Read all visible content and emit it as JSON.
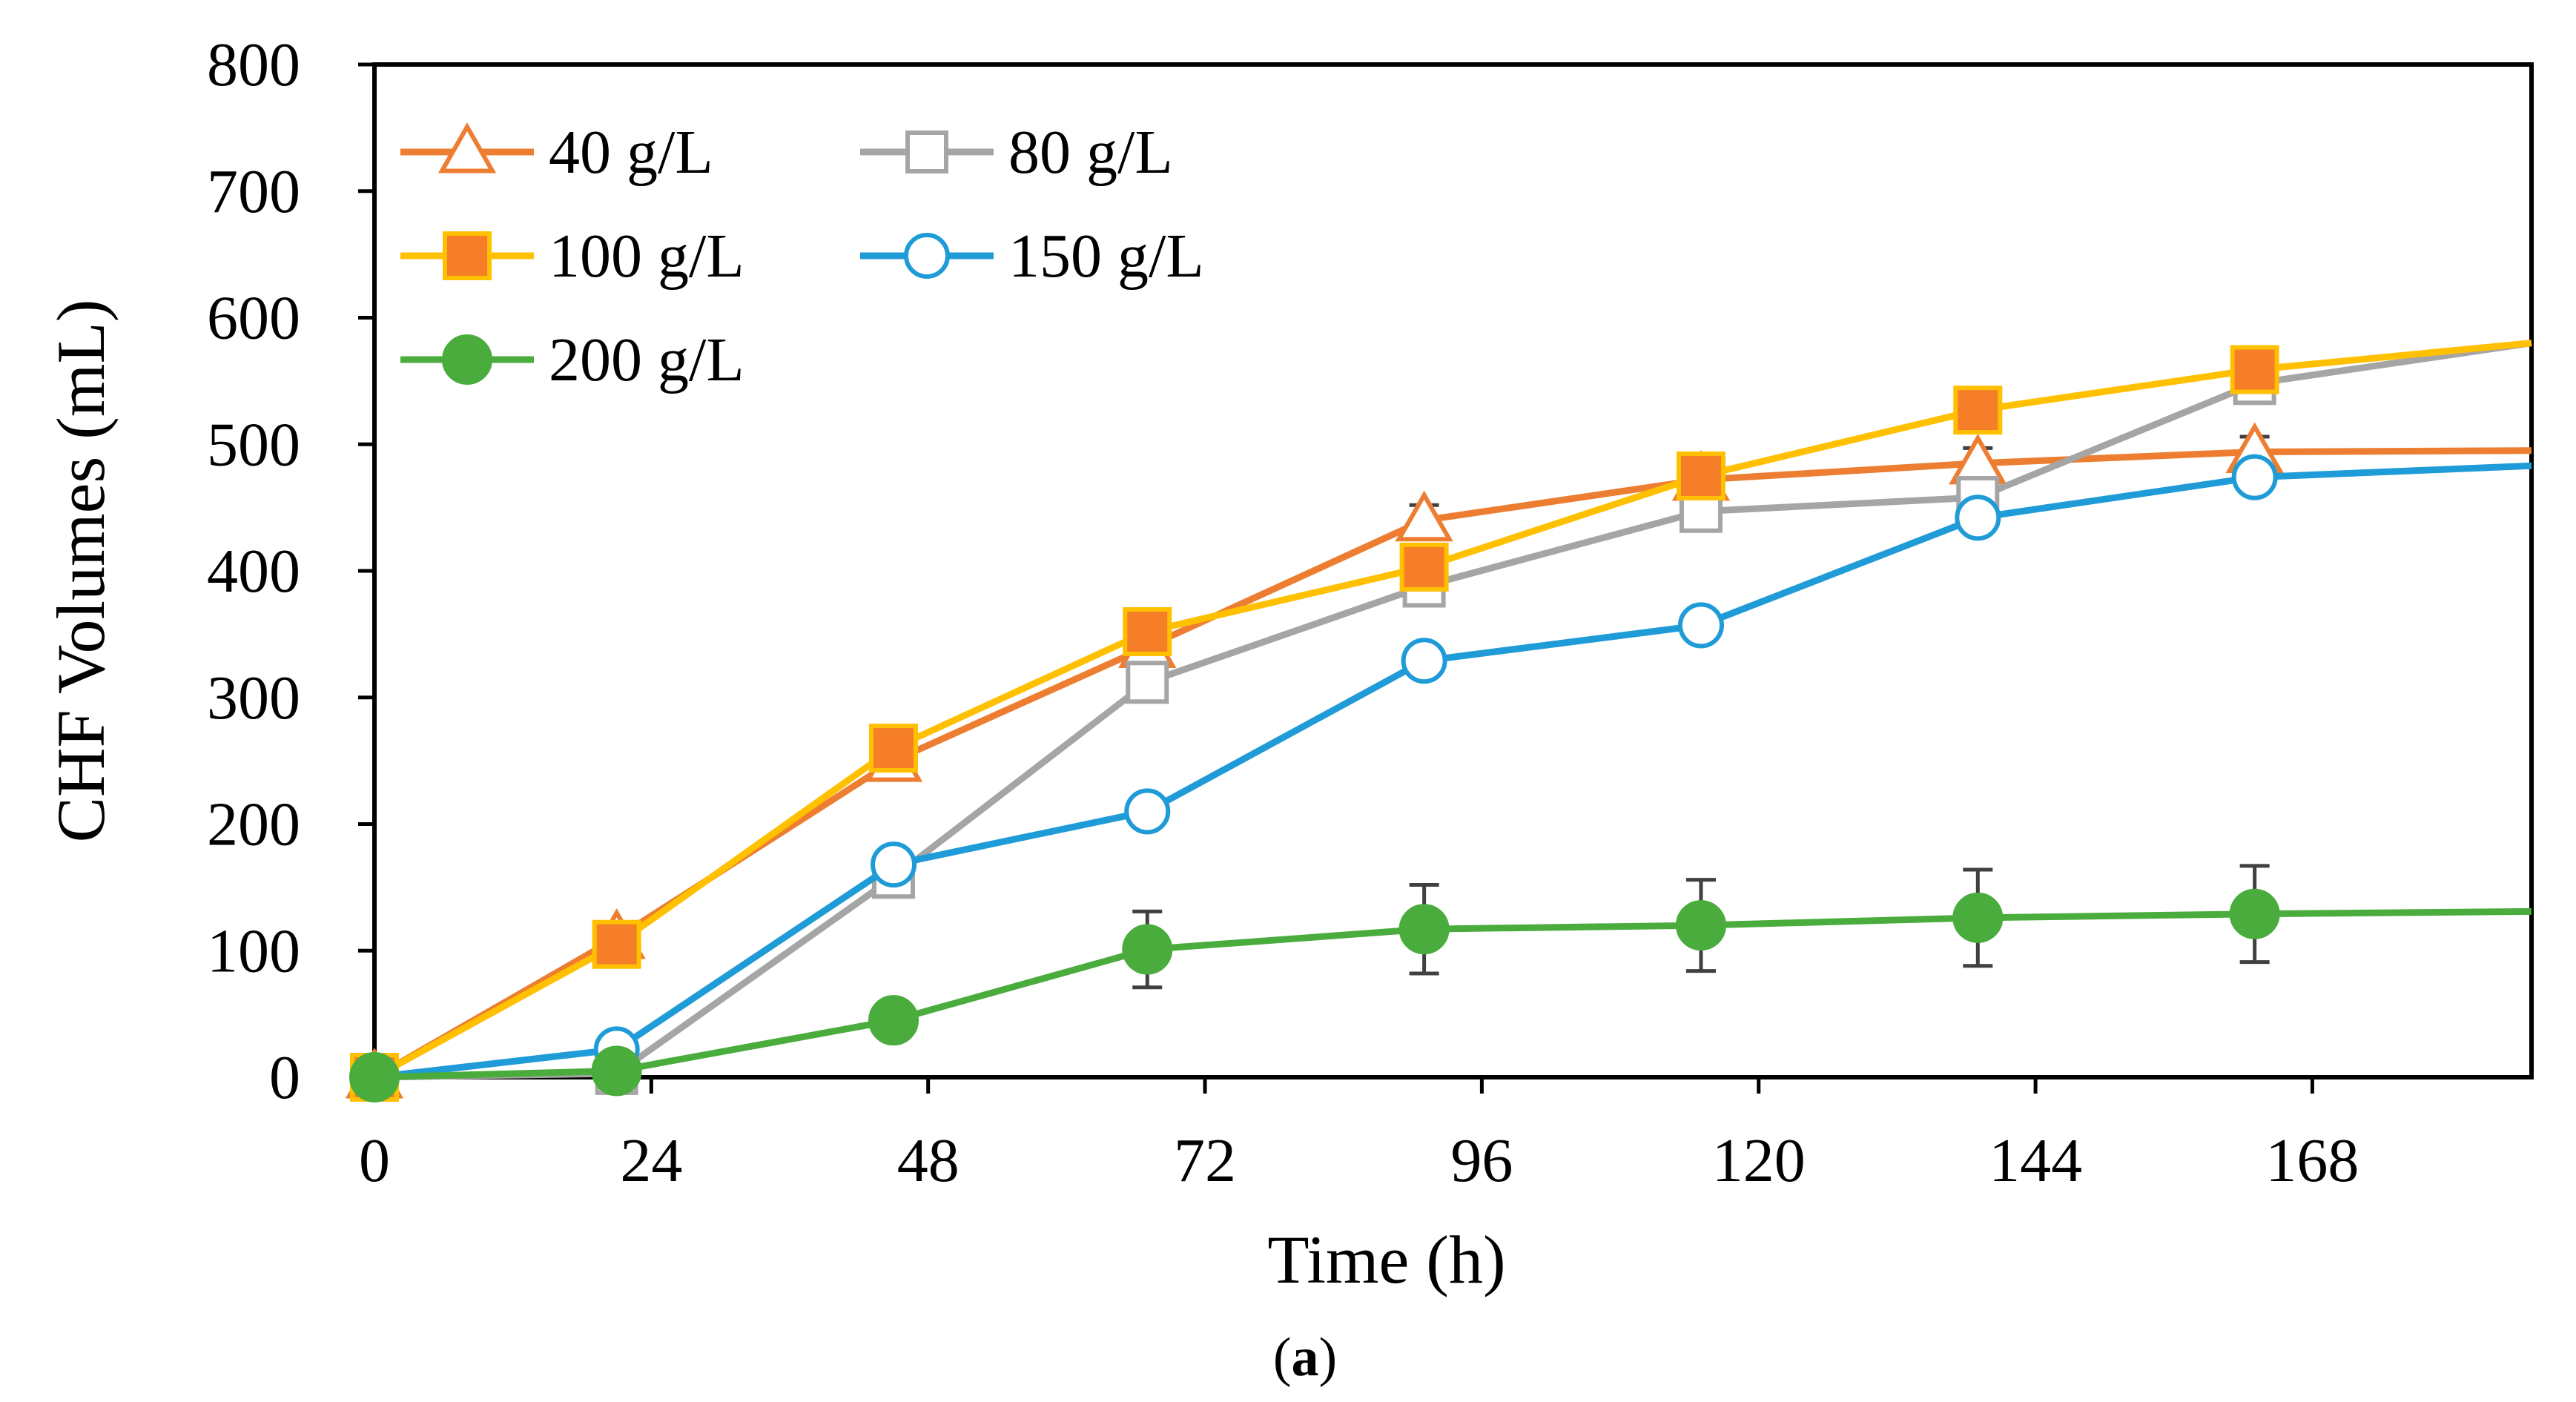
{
  "chart_data": {
    "type": "line",
    "x": [
      0,
      21,
      45,
      67,
      91,
      115,
      139,
      163,
      187
    ],
    "series": [
      {
        "name": "40 g/L",
        "color": "#ED7D31",
        "marker": "triangle-open",
        "values": [
          0,
          110,
          250,
          340,
          440,
          472,
          485,
          494,
          495
        ],
        "errors": [
          0,
          5,
          8,
          10,
          12,
          10,
          12,
          12,
          0
        ]
      },
      {
        "name": "80 g/L",
        "color": "#A5A5A5",
        "marker": "square-open",
        "values": [
          0,
          3,
          158,
          312,
          388,
          447,
          458,
          548,
          580
        ],
        "errors": [
          0,
          3,
          8,
          10,
          8,
          10,
          12,
          10,
          0
        ]
      },
      {
        "name": "100 g/L",
        "color": "#FFC000",
        "marker": "square-filled",
        "fill": "#F77E28",
        "values": [
          0,
          105,
          260,
          352,
          403,
          475,
          527,
          559,
          580
        ],
        "errors": [
          0,
          5,
          8,
          8,
          8,
          10,
          10,
          10,
          0
        ]
      },
      {
        "name": "150 g/L",
        "color": "#1F9BD7",
        "marker": "circle-open",
        "values": [
          0,
          22,
          168,
          210,
          329,
          357,
          442,
          474,
          483
        ],
        "errors": [
          0,
          5,
          8,
          8,
          10,
          12,
          10,
          10,
          0
        ]
      },
      {
        "name": "200 g/L",
        "color": "#4AAC3D",
        "marker": "circle-filled",
        "values": [
          0,
          5,
          45,
          101,
          117,
          120,
          126,
          129,
          131
        ],
        "errors": [
          0,
          0,
          0,
          30,
          35,
          36,
          38,
          38,
          0
        ]
      }
    ],
    "xticks": [
      0,
      24,
      48,
      72,
      96,
      120,
      144,
      168
    ],
    "yticks": [
      0,
      100,
      200,
      300,
      400,
      500,
      600,
      700,
      800
    ],
    "xlim": [
      0,
      187
    ],
    "ylim": [
      0,
      800
    ],
    "xlabel": "Time (h)",
    "ylabel": "CHF Volumes  (mL)",
    "legend": "top-left",
    "grid": false
  },
  "caption": {
    "open": "(",
    "letter": "a",
    "close": ")"
  }
}
